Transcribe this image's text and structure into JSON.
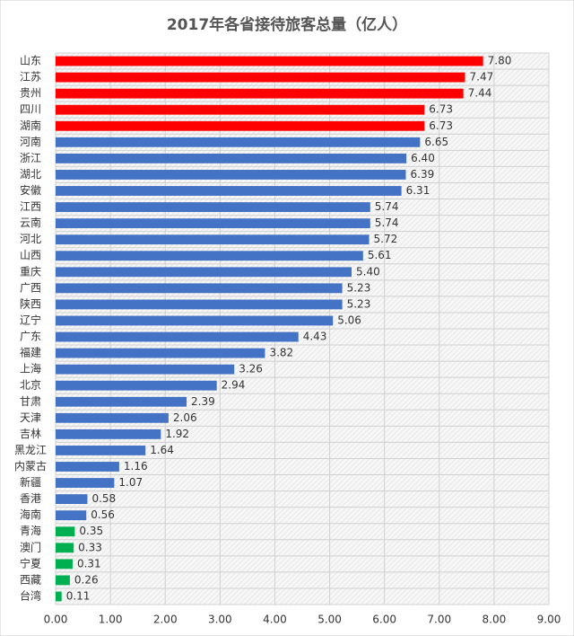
{
  "chart_data": {
    "type": "hbar",
    "title": "2017年各省接待旅客总量（亿人）",
    "categories": [
      "山东",
      "江苏",
      "贵州",
      "四川",
      "湖南",
      "河南",
      "浙江",
      "湖北",
      "安徽",
      "江西",
      "云南",
      "河北",
      "山西",
      "重庆",
      "广西",
      "陕西",
      "辽宁",
      "广东",
      "福建",
      "上海",
      "北京",
      "甘肃",
      "天津",
      "吉林",
      "黑龙江",
      "内蒙古",
      "新疆",
      "香港",
      "海南",
      "青海",
      "澳门",
      "宁夏",
      "西藏",
      "台湾"
    ],
    "values": [
      7.8,
      7.47,
      7.44,
      6.73,
      6.73,
      6.65,
      6.4,
      6.39,
      6.31,
      5.74,
      5.74,
      5.72,
      5.61,
      5.4,
      5.23,
      5.23,
      5.06,
      4.43,
      3.82,
      3.26,
      2.94,
      2.39,
      2.06,
      1.92,
      1.64,
      1.16,
      1.07,
      0.58,
      0.56,
      0.35,
      0.33,
      0.31,
      0.26,
      0.11
    ],
    "value_labels": [
      "7.80",
      "7.47",
      "7.44",
      "6.73",
      "6.73",
      "6.65",
      "6.40",
      "6.39",
      "6.31",
      "5.74",
      "5.74",
      "5.72",
      "5.61",
      "5.40",
      "5.23",
      "5.23",
      "5.06",
      "4.43",
      "3.82",
      "3.26",
      "2.94",
      "2.39",
      "2.06",
      "1.92",
      "1.64",
      "1.16",
      "1.07",
      "0.58",
      "0.56",
      "0.35",
      "0.33",
      "0.31",
      "0.26",
      "0.11"
    ],
    "colors": [
      "#ff0000",
      "#ff0000",
      "#ff0000",
      "#ff0000",
      "#ff0000",
      "#4472c4",
      "#4472c4",
      "#4472c4",
      "#4472c4",
      "#4472c4",
      "#4472c4",
      "#4472c4",
      "#4472c4",
      "#4472c4",
      "#4472c4",
      "#4472c4",
      "#4472c4",
      "#4472c4",
      "#4472c4",
      "#4472c4",
      "#4472c4",
      "#4472c4",
      "#4472c4",
      "#4472c4",
      "#4472c4",
      "#4472c4",
      "#4472c4",
      "#4472c4",
      "#4472c4",
      "#00b050",
      "#00b050",
      "#00b050",
      "#00b050",
      "#00b050"
    ],
    "xlim": [
      0,
      9
    ],
    "xticks": [
      {
        "value": 0,
        "label": "0.00"
      },
      {
        "value": 1,
        "label": "1.00"
      },
      {
        "value": 2,
        "label": "2.00"
      },
      {
        "value": 3,
        "label": "3.00"
      },
      {
        "value": 4,
        "label": "4.00"
      },
      {
        "value": 5,
        "label": "5.00"
      },
      {
        "value": 6,
        "label": "6.00"
      },
      {
        "value": 7,
        "label": "7.00"
      },
      {
        "value": 8,
        "label": "8.00"
      },
      {
        "value": 9,
        "label": "9.00"
      }
    ],
    "grid": true
  }
}
